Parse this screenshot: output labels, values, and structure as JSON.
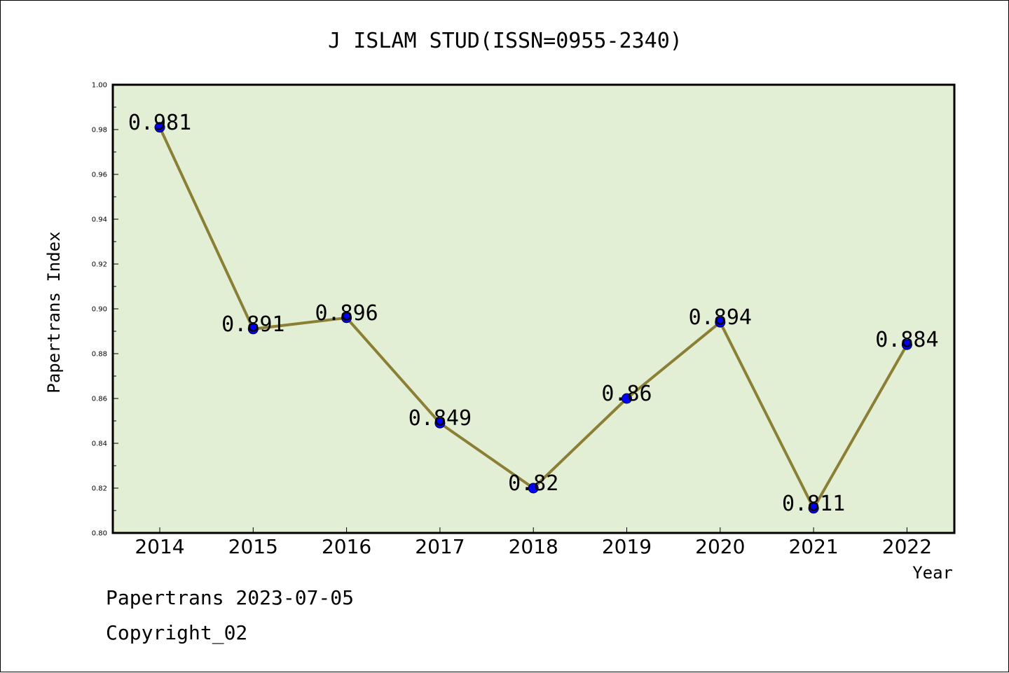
{
  "chart_data": {
    "type": "line",
    "title": "J ISLAM STUD(ISSN=0955-2340)",
    "xlabel": "Year",
    "ylabel": "Papertrans Index",
    "categories": [
      "2014",
      "2015",
      "2016",
      "2017",
      "2018",
      "2019",
      "2020",
      "2021",
      "2022"
    ],
    "values": [
      0.981,
      0.891,
      0.896,
      0.849,
      0.82,
      0.86,
      0.894,
      0.811,
      0.884
    ],
    "data_labels": [
      "0.981",
      "0.891",
      "0.896",
      "0.849",
      "0.82",
      "0.86",
      "0.894",
      "0.811",
      "0.884"
    ],
    "ylim": [
      0.8,
      1.0
    ],
    "yticks": [
      "0.80",
      "0.82",
      "0.84",
      "0.86",
      "0.88",
      "0.90",
      "0.92",
      "0.94",
      "0.96",
      "0.98",
      "1.00"
    ],
    "grid": false,
    "legend": "none",
    "colors": {
      "plot_background": "#e2efd5",
      "line": "#8b7f35",
      "marker": "#0000ff"
    }
  },
  "footer": {
    "line1": "Papertrans 2023-07-05",
    "line2": "Copyright_02"
  }
}
